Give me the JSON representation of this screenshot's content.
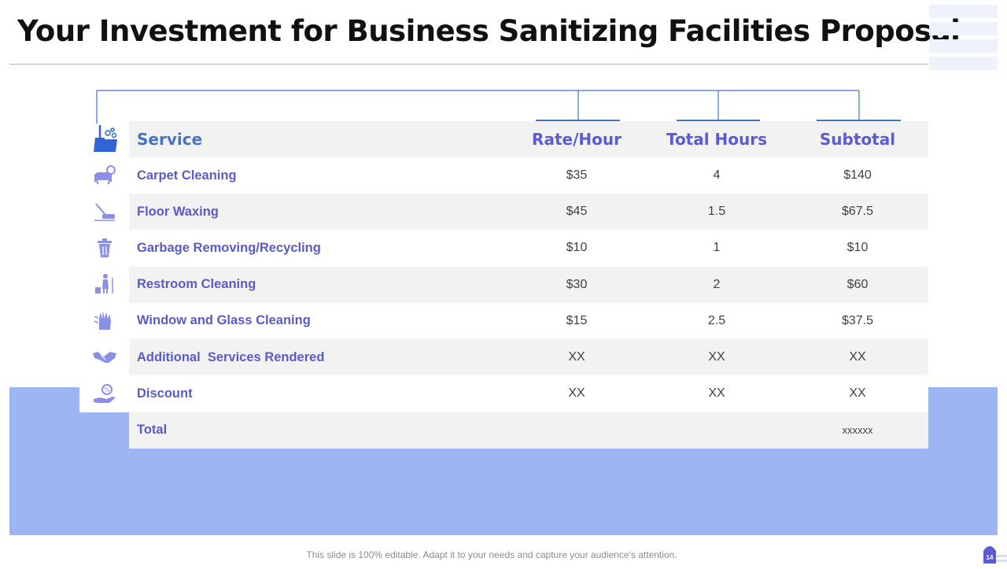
{
  "title": "Your Investment for Business Sanitizing Facilities Proposal",
  "table": {
    "headers": {
      "service": "Service",
      "rate": "Rate/Hour",
      "hours": "Total Hours",
      "subtotal": "Subtotal"
    },
    "rows": [
      {
        "icon": "sofa-cleaning-icon",
        "service": "Carpet Cleaning",
        "rate": "$35",
        "hours": "4",
        "subtotal": "$140"
      },
      {
        "icon": "floor-polisher-icon",
        "service": "Floor Waxing",
        "rate": "$45",
        "hours": "1.5",
        "subtotal": "$67.5"
      },
      {
        "icon": "trash-bin-icon",
        "service": "Garbage Removing/Recycling",
        "rate": "$10",
        "hours": "1",
        "subtotal": "$10"
      },
      {
        "icon": "restroom-cleaner-icon",
        "service": "Restroom Cleaning",
        "rate": "$30",
        "hours": "2",
        "subtotal": "$60"
      },
      {
        "icon": "glove-wipe-icon",
        "service": "Window and Glass Cleaning",
        "rate": "$15",
        "hours": "2.5",
        "subtotal": "$37.5"
      },
      {
        "icon": "handshake-icon",
        "service": "Additional  Services Rendered",
        "rate": "XX",
        "hours": "XX",
        "subtotal": "XX"
      },
      {
        "icon": "discount-hand-icon",
        "service": "Discount",
        "rate": "XX",
        "hours": "XX",
        "subtotal": "XX"
      }
    ],
    "total": {
      "label": "Total",
      "subtotal": "xxxxxx"
    }
  },
  "footer_note": "This slide is 100% editable. Adapt it to your needs and capture your audience's attention.",
  "page_number": "14",
  "colors": {
    "accent": "#4472c4",
    "service_text": "#5b5bc8",
    "band": "#9db5f2",
    "row_gray": "#f2f2f2"
  }
}
